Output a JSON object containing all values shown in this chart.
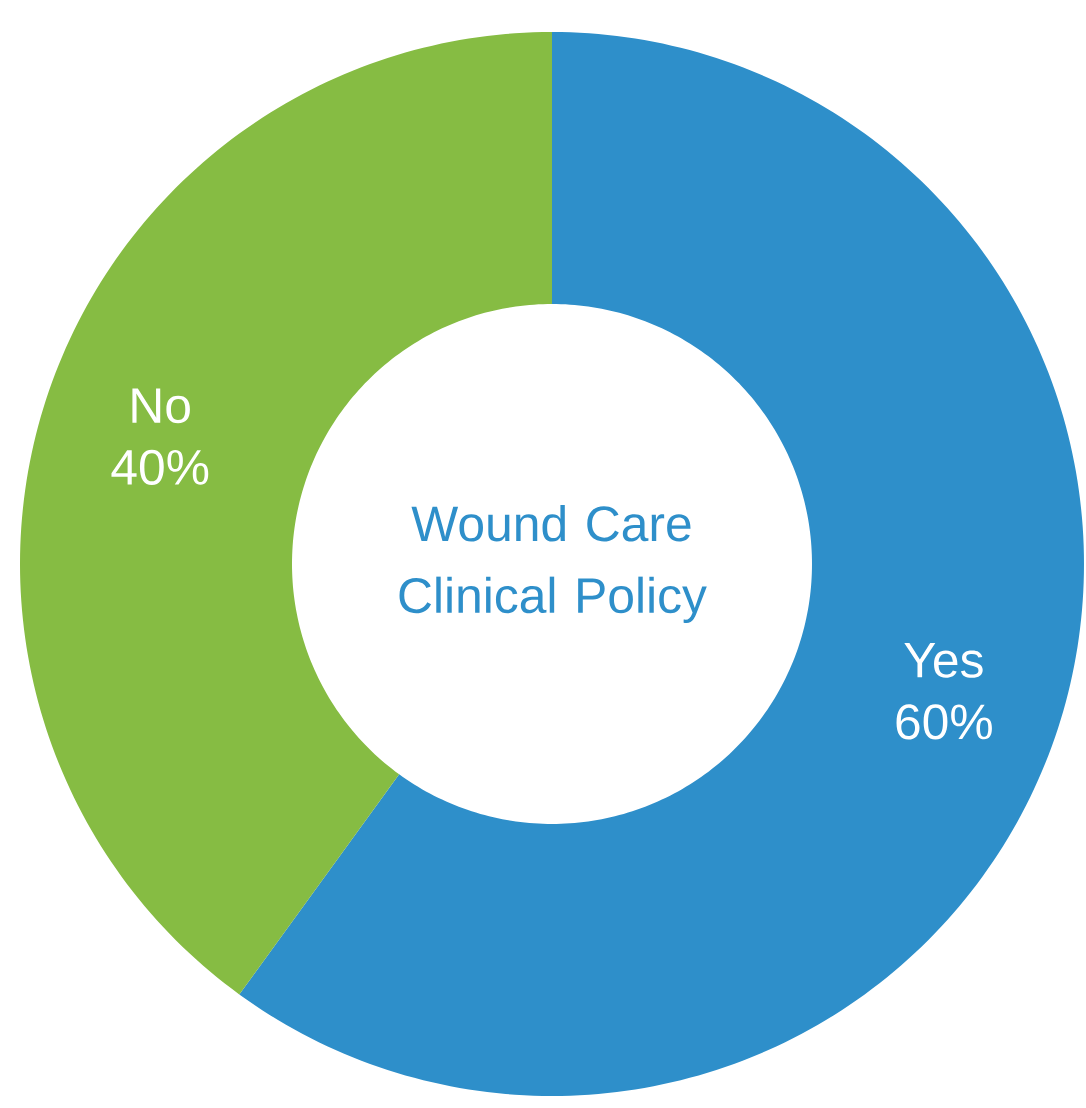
{
  "chart_data": {
    "type": "donut",
    "title": "Wound Care Clinical Policy",
    "categories": [
      "Yes",
      "No"
    ],
    "values": [
      60,
      40
    ],
    "value_labels": [
      "60%",
      "40%"
    ],
    "colors": [
      "#2e8fca",
      "#86bc43"
    ]
  }
}
